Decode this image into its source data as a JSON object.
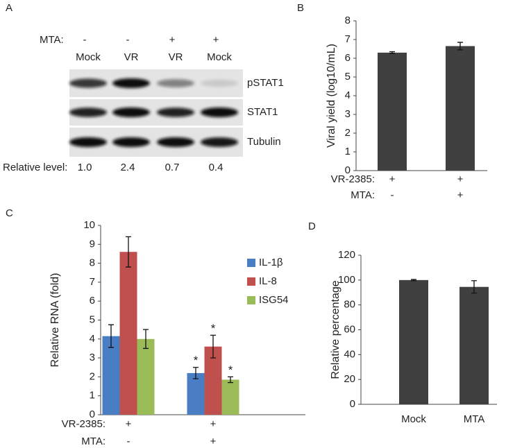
{
  "blot": {
    "panel_label": "A",
    "mta_label": "MTA:",
    "mta": [
      "-",
      "-",
      "+",
      "+"
    ],
    "lanes": [
      "Mock",
      "VR",
      "VR",
      "Mock"
    ],
    "bands": [
      "pSTAT1",
      "STAT1",
      "Tubulin"
    ],
    "relative_label": "Relative level:",
    "relative": [
      "1.0",
      "2.4",
      "0.7",
      "0.4"
    ]
  },
  "chart_data": [
    {
      "type": "bar",
      "panel_label": "B",
      "y_label": "Viral yield (log10/mL)",
      "conditions": [
        {
          "label": "VR-2385:",
          "values": [
            "+",
            "+"
          ]
        },
        {
          "label": "MTA:",
          "values": [
            "-",
            "+"
          ]
        }
      ],
      "values": [
        6.3,
        6.65
      ],
      "errors": [
        0.05,
        0.2
      ],
      "color": "#404040",
      "ylim": [
        0,
        8
      ],
      "yticks": [
        0,
        1,
        2,
        3,
        4,
        5,
        6,
        7,
        8
      ]
    },
    {
      "type": "grouped-bar",
      "panel_label": "C",
      "y_label": "Relative RNA (fold)",
      "conditions": [
        {
          "label": "VR-2385:",
          "values": [
            "+",
            "+"
          ]
        },
        {
          "label": "MTA:",
          "values": [
            "-",
            "+"
          ]
        }
      ],
      "series": [
        {
          "name": "IL-1β",
          "color": "#4a7ec4",
          "values": [
            4.15,
            2.2
          ],
          "errors": [
            0.6,
            0.3
          ],
          "annotations": [
            null,
            "*"
          ]
        },
        {
          "name": "IL-8",
          "color": "#c0504d",
          "values": [
            8.6,
            3.6
          ],
          "errors": [
            0.8,
            0.6
          ],
          "annotations": [
            null,
            "*"
          ]
        },
        {
          "name": "ISG54",
          "color": "#9bbb59",
          "values": [
            4.0,
            1.85
          ],
          "errors": [
            0.5,
            0.15
          ],
          "annotations": [
            null,
            "*"
          ]
        }
      ],
      "ylim": [
        0,
        10
      ],
      "yticks": [
        0,
        1,
        2,
        3,
        4,
        5,
        6,
        7,
        8,
        9,
        10
      ],
      "legend": "right"
    },
    {
      "type": "bar",
      "panel_label": "D",
      "y_label": "Relative percentage",
      "categories": [
        "Mock",
        "MTA"
      ],
      "values": [
        100,
        94.5
      ],
      "errors": [
        0.5,
        5
      ],
      "color": "#404040",
      "ylim": [
        0,
        120
      ],
      "yticks": [
        0,
        20,
        40,
        60,
        80,
        100,
        120
      ]
    }
  ]
}
